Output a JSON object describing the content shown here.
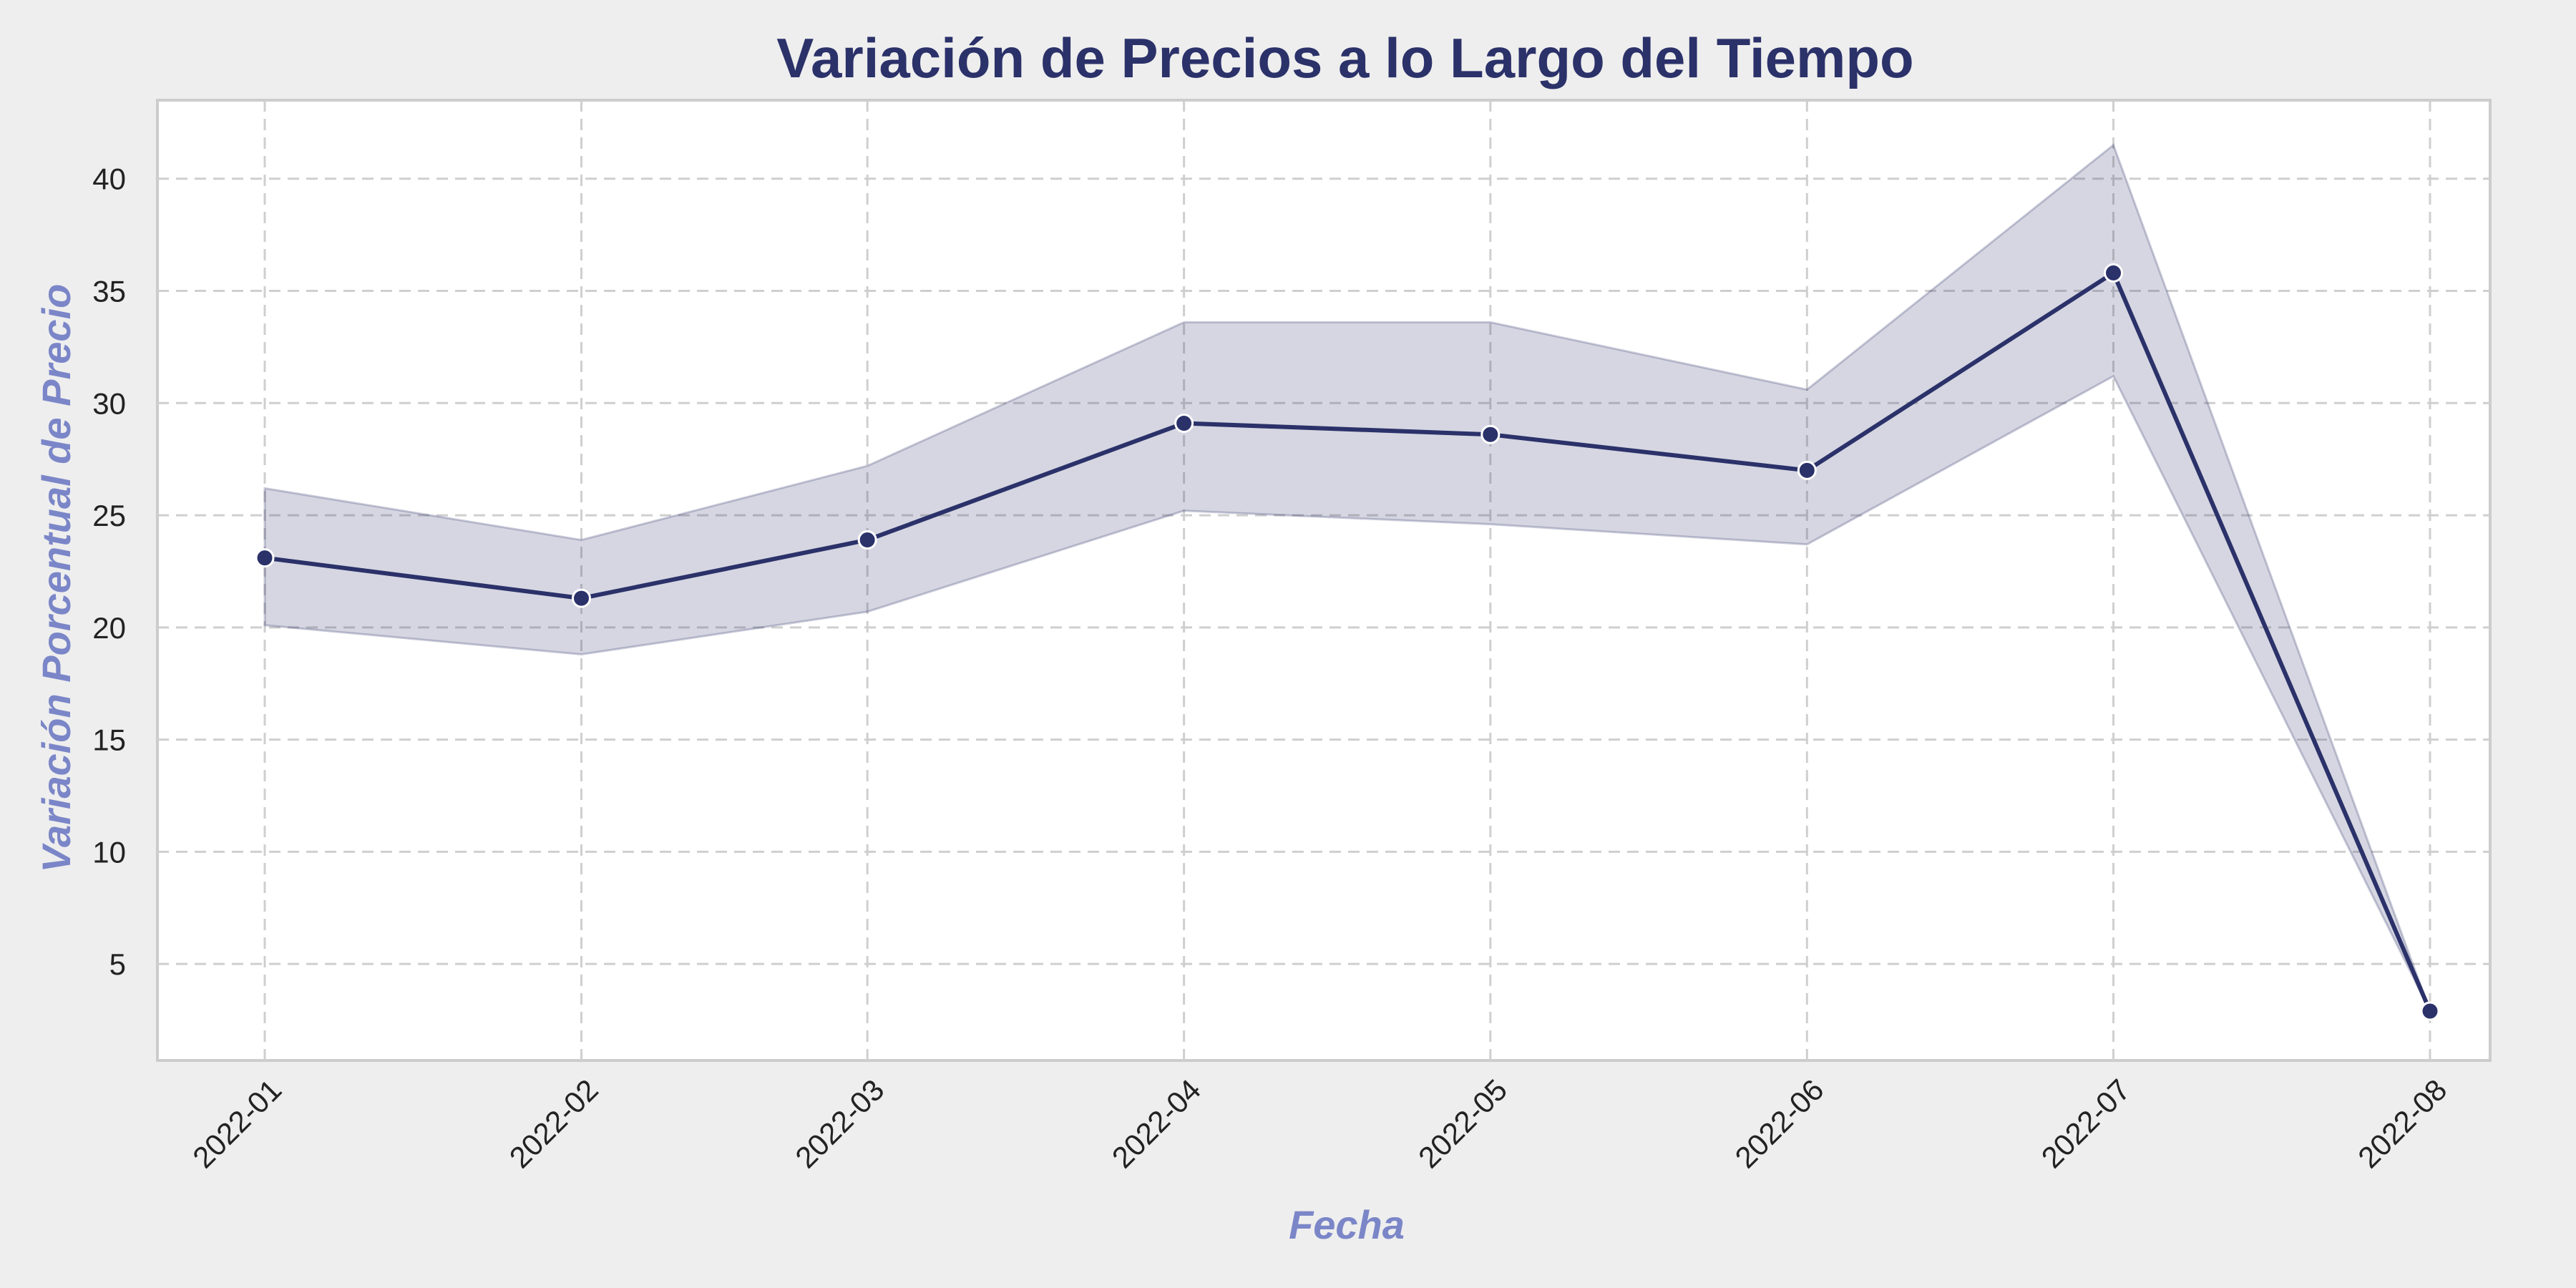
{
  "chart_data": {
    "type": "line",
    "title": "Variación de Precios a lo Largo del Tiempo",
    "xlabel": "Fecha",
    "ylabel": "Variación Porcentual de Precio",
    "categories": [
      "2022-01",
      "2022-02",
      "2022-03",
      "2022-04",
      "2022-05",
      "2022-06",
      "2022-07",
      "2022-08"
    ],
    "x_dates": [
      "2022-01-01",
      "2022-02-01",
      "2022-03-01",
      "2022-04-01",
      "2022-05-01",
      "2022-06-01",
      "2022-07-01",
      "2022-08-01"
    ],
    "series": [
      {
        "values": [
          23.1,
          21.3,
          23.9,
          29.1,
          28.6,
          27.0,
          35.8,
          2.9
        ],
        "ci_lower": [
          20.1,
          18.8,
          20.7,
          25.2,
          24.6,
          23.7,
          31.2,
          2.9
        ],
        "ci_upper": [
          26.2,
          23.9,
          27.2,
          33.6,
          33.6,
          30.6,
          41.5,
          2.9
        ]
      }
    ],
    "yticks": [
      5,
      10,
      15,
      20,
      25,
      30,
      35,
      40
    ],
    "ylim": [
      0.7,
      43.5
    ],
    "grid": true,
    "colors": {
      "line": "#2b3169",
      "marker": "#2b3169",
      "band": "#2b3169",
      "title": "#2b3169",
      "axis_label": "#7b86c8",
      "grid": "#cfcfcf",
      "background": "#eeeeee",
      "plot_background": "#ffffff"
    }
  }
}
